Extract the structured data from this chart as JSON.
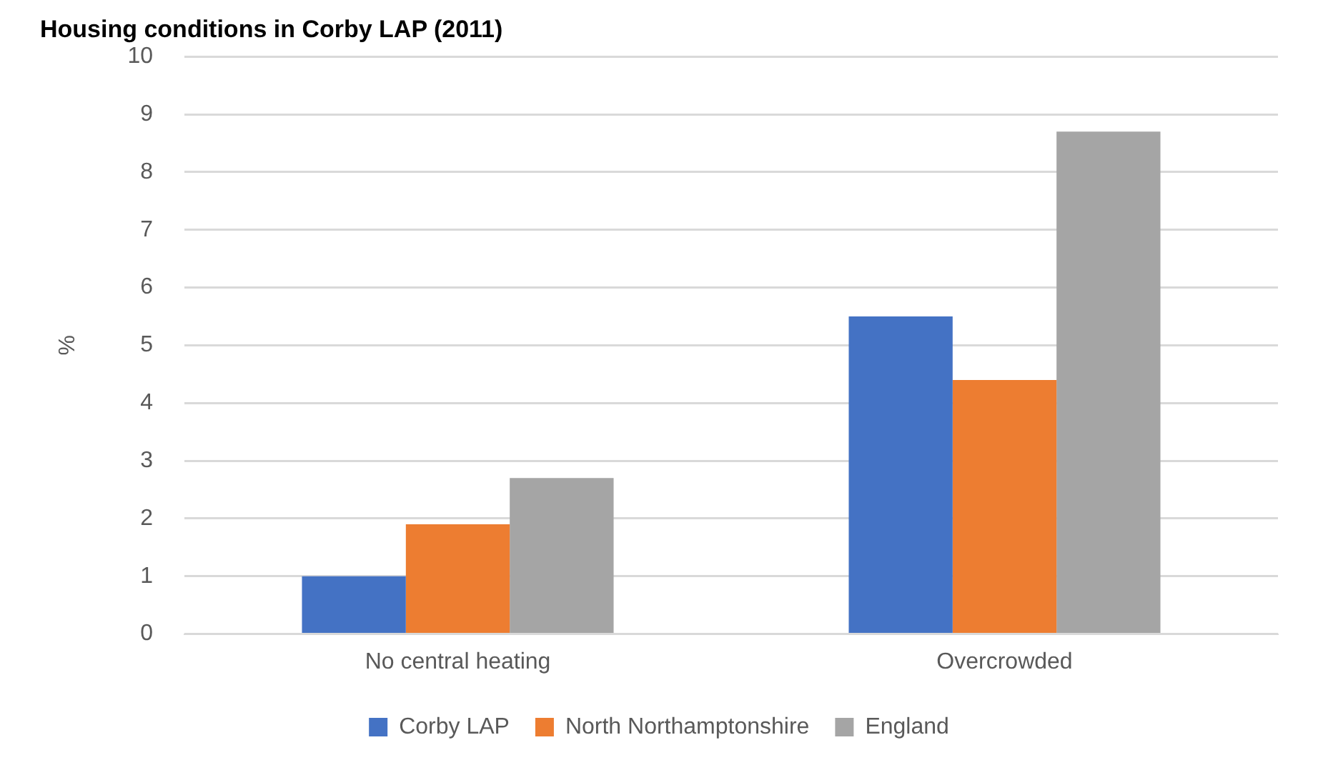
{
  "chart_data": {
    "type": "bar",
    "title": "Housing conditions in Corby LAP (2011)",
    "ylabel": "%",
    "categories": [
      "No central heating",
      "Overcrowded"
    ],
    "series": [
      {
        "name": "Corby LAP",
        "color": "#4472c4",
        "values": [
          1.0,
          5.5
        ]
      },
      {
        "name": "North Northamptonshire",
        "color": "#ed7d31",
        "values": [
          1.9,
          4.4
        ]
      },
      {
        "name": "England",
        "color": "#a5a5a5",
        "values": [
          2.7,
          8.7
        ]
      }
    ],
    "ylim": [
      0,
      10
    ],
    "yticks": [
      0,
      1,
      2,
      3,
      4,
      5,
      6,
      7,
      8,
      9,
      10
    ],
    "grid": "y",
    "legend": "bottom"
  }
}
